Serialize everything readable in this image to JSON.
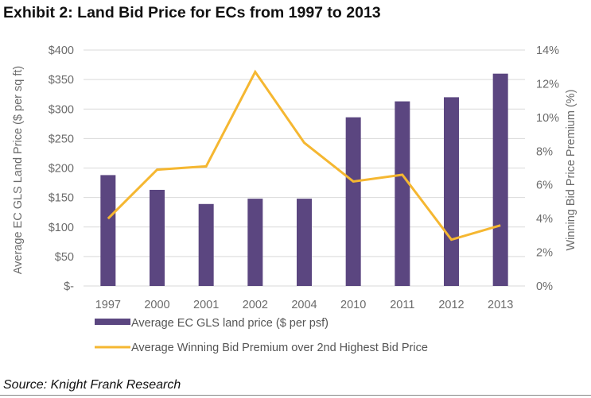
{
  "chart_data": {
    "type": "bar+line",
    "title": "Exhibit 2: Land Bid Price for ECs from 1997 to 2013",
    "categories": [
      "1997",
      "2000",
      "2001",
      "2002",
      "2004",
      "2010",
      "2011",
      "2012",
      "2013"
    ],
    "series": [
      {
        "name": "Average EC GLS land price ($ per psf)",
        "type": "bar",
        "axis": "left",
        "color": "#5b4680",
        "values": [
          188,
          163,
          139,
          148,
          148,
          286,
          313,
          320,
          360
        ]
      },
      {
        "name": "Average Winning Bid Premium over 2nd Highest Bid Price",
        "type": "line",
        "axis": "right",
        "color": "#f5b731",
        "values": [
          4.0,
          6.9,
          7.1,
          12.7,
          8.5,
          6.2,
          6.6,
          2.75,
          3.6
        ]
      }
    ],
    "y_left": {
      "label": "Average  EC  GLS Land Price ($ per sq ft)",
      "range": [
        0,
        400
      ],
      "ticks": [
        0,
        50,
        100,
        150,
        200,
        250,
        300,
        350,
        400
      ],
      "tick_labels": [
        "$-",
        "$50",
        "$100",
        "$150",
        "$200",
        "$250",
        "$300",
        "$350",
        "$400"
      ]
    },
    "y_right": {
      "label": "Winning Bid Price Premium (%)",
      "range": [
        0,
        14
      ],
      "ticks": [
        0,
        2,
        4,
        6,
        8,
        10,
        12,
        14
      ],
      "tick_labels": [
        "0%",
        "2%",
        "4%",
        "6%",
        "8%",
        "10%",
        "12%",
        "14%"
      ]
    },
    "grid": true,
    "legend": "bottom",
    "source": "Source: Knight Frank Research"
  }
}
